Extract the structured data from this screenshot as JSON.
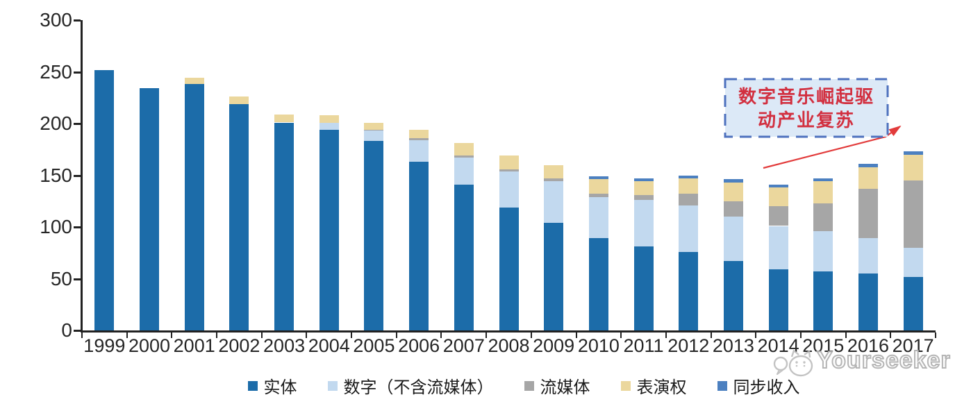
{
  "chart_data": {
    "type": "bar",
    "stacked": true,
    "title": "",
    "categories": [
      "1999",
      "2000",
      "2001",
      "2002",
      "2003",
      "2004",
      "2005",
      "2006",
      "2007",
      "2008",
      "2009",
      "2010",
      "2011",
      "2012",
      "2013",
      "2014",
      "2015",
      "2016",
      "2017"
    ],
    "series": [
      {
        "key": "physical",
        "name": "实体",
        "color": "#1C6CA9",
        "values": [
          252,
          234,
          238,
          219,
          201,
          194,
          183,
          163,
          141,
          119,
          104,
          89,
          81,
          76,
          67,
          59,
          57,
          55,
          52
        ]
      },
      {
        "key": "digital",
        "name": "数字（不含流媒体）",
        "color": "#C2D9EF",
        "values": [
          0,
          0,
          0,
          0,
          0,
          7,
          10,
          21,
          26,
          35,
          40,
          40,
          45,
          45,
          43,
          42,
          39,
          34,
          28
        ]
      },
      {
        "key": "streaming",
        "name": "流媒体",
        "color": "#A6A6A6",
        "values": [
          0,
          0,
          0,
          0,
          0,
          0,
          1,
          2,
          2,
          2,
          3,
          3,
          5,
          11,
          15,
          19,
          27,
          48,
          65
        ]
      },
      {
        "key": "performance",
        "name": "表演权",
        "color": "#EBD79D",
        "values": [
          0,
          0,
          6,
          7,
          8,
          7,
          7,
          8,
          12,
          13,
          13,
          14,
          13,
          15,
          18,
          18,
          21,
          21,
          25
        ]
      },
      {
        "key": "sync",
        "name": "同步收入",
        "color": "#4C80C0",
        "values": [
          0,
          0,
          0,
          0,
          0,
          0,
          0,
          0,
          0,
          0,
          0,
          3,
          3,
          3,
          3,
          3,
          3,
          3,
          3
        ]
      }
    ],
    "ylim": [
      0,
      300
    ],
    "y_ticks": [
      0,
      50,
      100,
      150,
      200,
      250,
      300
    ],
    "grid": false,
    "legend_position": "bottom",
    "annotation": "数字音乐崛起驱动产业复苏"
  },
  "annotation": {
    "line1": "数字音乐崛起驱",
    "line2": "动产业复苏"
  },
  "watermark": {
    "text": "Yourseeker",
    "logo": "cat-face-outline"
  }
}
